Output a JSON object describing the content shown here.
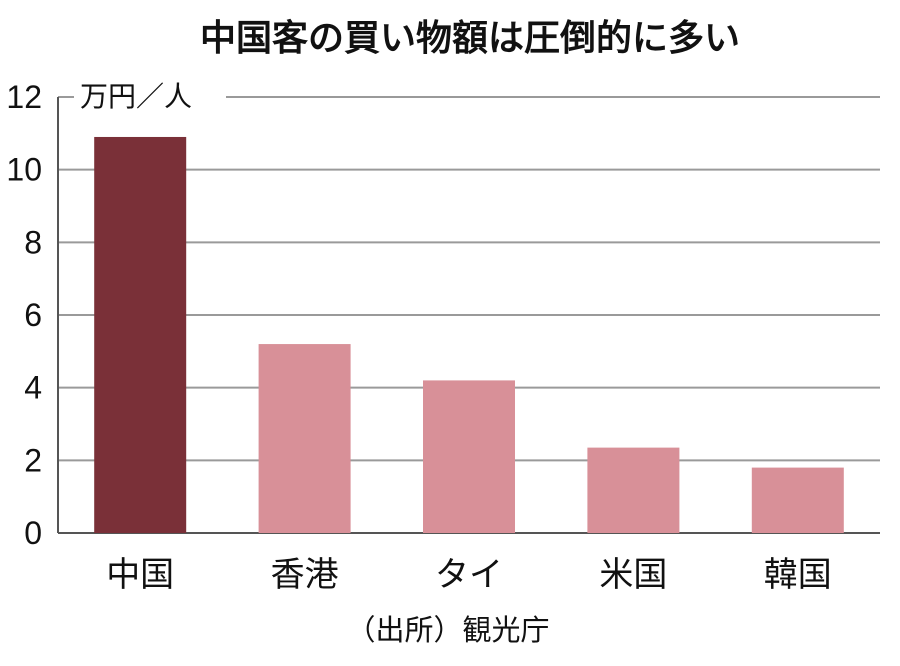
{
  "chart_data": {
    "type": "bar",
    "title": "中国客の買い物額は圧倒的に多い",
    "unit": "万円／人",
    "source": "（出所）観光庁",
    "categories": [
      "中国",
      "香港",
      "タイ",
      "米国",
      "韓国"
    ],
    "values": [
      10.9,
      5.2,
      4.2,
      2.35,
      1.8
    ],
    "ylim": [
      0,
      12
    ],
    "yticks": [
      0,
      2,
      4,
      6,
      8,
      10,
      12
    ],
    "grid": true,
    "colors": {
      "highlight": "#7a3038",
      "default": "#d89098"
    },
    "highlight_index": 0
  }
}
